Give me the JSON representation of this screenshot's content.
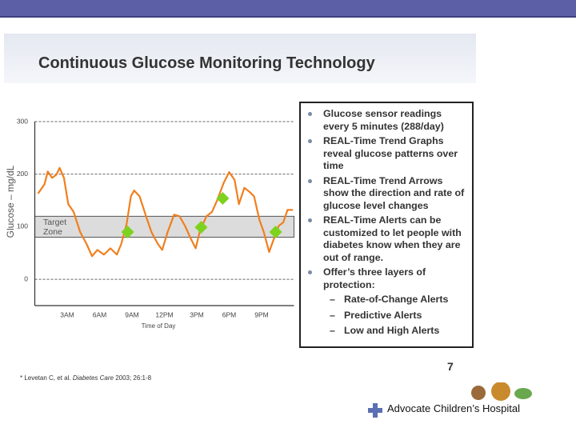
{
  "slide": {
    "title": "Continuous Glucose Monitoring Technology",
    "bullets": [
      {
        "text": "Glucose sensor readings every 5 minutes (288/day)"
      },
      {
        "text": "REAL-Time Trend Graphs reveal glucose patterns over time"
      },
      {
        "text": "REAL-Time Trend Arrows show the direction and rate of glucose level changes"
      },
      {
        "text": "REAL-Time Alerts can be customized to let people with diabetes know when they are out of range."
      },
      {
        "text": "Offer’s three layers of protection:",
        "subitems": [
          "Rate-of-Change Alerts",
          "Predictive Alerts",
          "Low and High Alerts"
        ]
      }
    ],
    "page_number": "7",
    "footnote": {
      "before": "* Levetan C, et al. ",
      "journal": "Diabetes Care",
      "after": " 2003; 26:1-8"
    },
    "logo": "Advocate Children’s Hospital"
  },
  "chart_data": {
    "type": "line",
    "x_label": "Time of Day",
    "y_label": "Glucose – mg/dL",
    "xlim": [
      0,
      24
    ],
    "xticks": [
      {
        "value": 3,
        "label": "3AM"
      },
      {
        "value": 6,
        "label": "6AM"
      },
      {
        "value": 9,
        "label": "9AM"
      },
      {
        "value": 12,
        "label": "12PM"
      },
      {
        "value": 15,
        "label": "3PM"
      },
      {
        "value": 18,
        "label": "6PM"
      },
      {
        "value": 21,
        "label": "9PM"
      }
    ],
    "ylim": [
      -50,
      300
    ],
    "yticks": [
      0,
      100,
      200,
      300
    ],
    "grid": true,
    "target_zone": {
      "label": "Target Zone",
      "range": [
        80,
        120
      ],
      "color": "#dcdcdc"
    },
    "series": [
      {
        "type": "line",
        "color": "#f07f1e",
        "x": [
          0.3,
          0.9,
          1.2,
          1.6,
          2.0,
          2.3,
          2.7,
          3.1,
          3.6,
          4.2,
          4.8,
          5.3,
          5.8,
          6.4,
          7.0,
          7.6,
          8.0,
          8.5,
          8.9,
          9.2,
          9.7,
          10.3,
          10.8,
          11.4,
          11.8,
          12.3,
          12.9,
          13.4,
          13.9,
          14.5,
          14.9,
          15.3,
          15.9,
          16.4,
          16.9,
          17.5,
          18.0,
          18.5,
          18.9,
          19.4,
          19.9,
          20.3,
          20.8,
          21.2,
          21.7,
          22.1,
          22.6,
          23.0,
          23.4,
          23.9
        ],
        "values": [
          163,
          181,
          205,
          193,
          199,
          212,
          193,
          143,
          128,
          90,
          67,
          44,
          56,
          47,
          59,
          47,
          67,
          105,
          158,
          169,
          158,
          120,
          90,
          67,
          56,
          90,
          123,
          120,
          102,
          75,
          59,
          93,
          120,
          128,
          151,
          184,
          204,
          189,
          143,
          174,
          166,
          158,
          113,
          90,
          52,
          75,
          102,
          108,
          132,
          132
        ]
      },
      {
        "type": "scatter",
        "color": "#7dd21f",
        "x": [
          8.6,
          15.4,
          17.4,
          22.3
        ],
        "values": [
          90,
          99,
          154,
          90
        ]
      }
    ]
  }
}
